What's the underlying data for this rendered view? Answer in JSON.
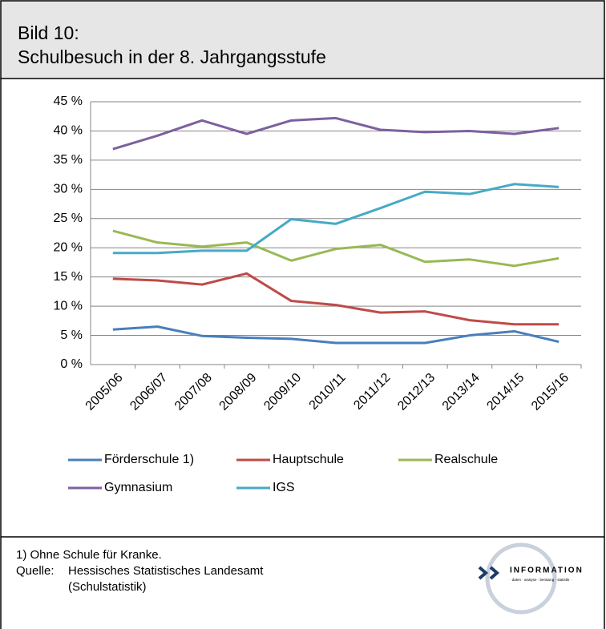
{
  "header": {
    "label": "Bild 10:",
    "title": "Schulbesuch in der 8. Jahrgangsstufe"
  },
  "chart_data": {
    "type": "line",
    "categories": [
      "2005/06",
      "2006/07",
      "2007/08",
      "2008/09",
      "2009/10",
      "2010/11",
      "2011/12",
      "2012/13",
      "2013/14",
      "2014/15",
      "2015/16"
    ],
    "series": [
      {
        "name": "Förderschule 1)",
        "color": "#4a7ebb",
        "values": [
          6.0,
          6.5,
          4.9,
          4.6,
          4.4,
          3.7,
          3.7,
          3.7,
          5.0,
          5.7,
          3.9
        ]
      },
      {
        "name": "Hauptschule",
        "color": "#be4b48",
        "values": [
          14.7,
          14.4,
          13.7,
          15.6,
          10.9,
          10.2,
          8.9,
          9.1,
          7.6,
          6.9,
          6.9
        ]
      },
      {
        "name": "Realschule",
        "color": "#98b954",
        "values": [
          22.9,
          20.9,
          20.2,
          20.9,
          17.8,
          19.8,
          20.5,
          17.6,
          18.0,
          16.9,
          18.2
        ]
      },
      {
        "name": "Gymnasium",
        "color": "#7d60a0",
        "values": [
          36.9,
          39.2,
          41.8,
          39.5,
          41.8,
          42.2,
          40.2,
          39.8,
          40.0,
          39.5,
          40.5
        ]
      },
      {
        "name": "IGS",
        "color": "#46aac5",
        "values": [
          19.1,
          19.1,
          19.5,
          19.5,
          24.9,
          24.1,
          26.8,
          29.6,
          29.2,
          30.9,
          30.4
        ]
      }
    ],
    "ylim": [
      0,
      45
    ],
    "yticks": [
      {
        "value": 0,
        "label": "0 %"
      },
      {
        "value": 5,
        "label": "5 %"
      },
      {
        "value": 10,
        "label": "10 %"
      },
      {
        "value": 15,
        "label": "15 %"
      },
      {
        "value": 20,
        "label": "20 %"
      },
      {
        "value": 25,
        "label": "25 %"
      },
      {
        "value": 30,
        "label": "30 %"
      },
      {
        "value": 35,
        "label": "35 %"
      },
      {
        "value": 40,
        "label": "40 %"
      },
      {
        "value": 45,
        "label": "45 %"
      }
    ],
    "grid": true,
    "legend": "bottom"
  },
  "footer": {
    "footnote": "1) Ohne Schule für Kranke.",
    "source_label": "Quelle:",
    "source": [
      "Hessisches Statistisches Landesamt",
      "(Schulstatistik)"
    ]
  },
  "logo": {
    "name": "INFORMATION",
    "tagline": "· daten · analyse · beratung · statistik ·"
  }
}
